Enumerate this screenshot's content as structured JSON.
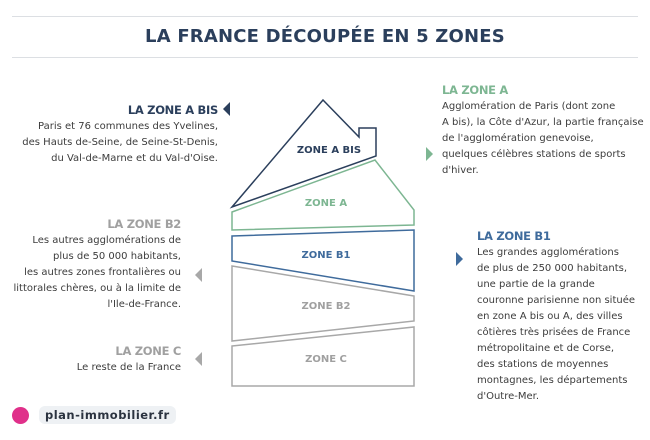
{
  "title": "LA FRANCE DÉCOUPÉE EN 5 ZONES",
  "colors": {
    "abis": "#2b3f5c",
    "a": "#7db692",
    "b1": "#3f6b9c",
    "b2": "#a0a0a0",
    "c": "#a0a0a0",
    "logo": "#e0308a"
  },
  "zones": {
    "abis": {
      "label": "ZONE A BIS",
      "heading": "LA ZONE A BIS",
      "lines": [
        "Paris et 76 communes des Yvelines,",
        "des Hauts de-Seine, de Seine-St-Denis,",
        "du Val-de-Marne et du Val-d'Oise."
      ]
    },
    "a": {
      "label": "ZONE A",
      "heading": "LA ZONE A",
      "lines": [
        "Agglomération de Paris (dont zone",
        "A bis), la Côte d'Azur, la partie française",
        "de l'agglomération genevoise,",
        "quelques célèbres stations de sports",
        "d'hiver."
      ]
    },
    "b1": {
      "label": "ZONE B1",
      "heading": "LA ZONE B1",
      "lines": [
        "Les grandes agglomérations",
        "de plus de 250 000 habitants,",
        "une partie de la grande",
        "couronne parisienne non située",
        "en zone A bis ou A, des villes",
        "côtières très prisées de France",
        "métropolitaine et de Corse,",
        "des stations de moyennes",
        "montagnes, les départements",
        "d'Outre-Mer."
      ]
    },
    "b2": {
      "label": "ZONE B2",
      "heading": "LA ZONE B2",
      "lines": [
        "Les autres agglomérations de",
        "plus de 50 000 habitants,",
        "les autres zones frontalières ou",
        "littorales chères, ou à la limite de",
        "l'Ile-de-France."
      ]
    },
    "c": {
      "label": "ZONE C",
      "heading": "LA ZONE C",
      "lines": [
        "Le reste de la France"
      ]
    }
  },
  "footer": {
    "logo_text": "plan-immobilier.fr"
  }
}
